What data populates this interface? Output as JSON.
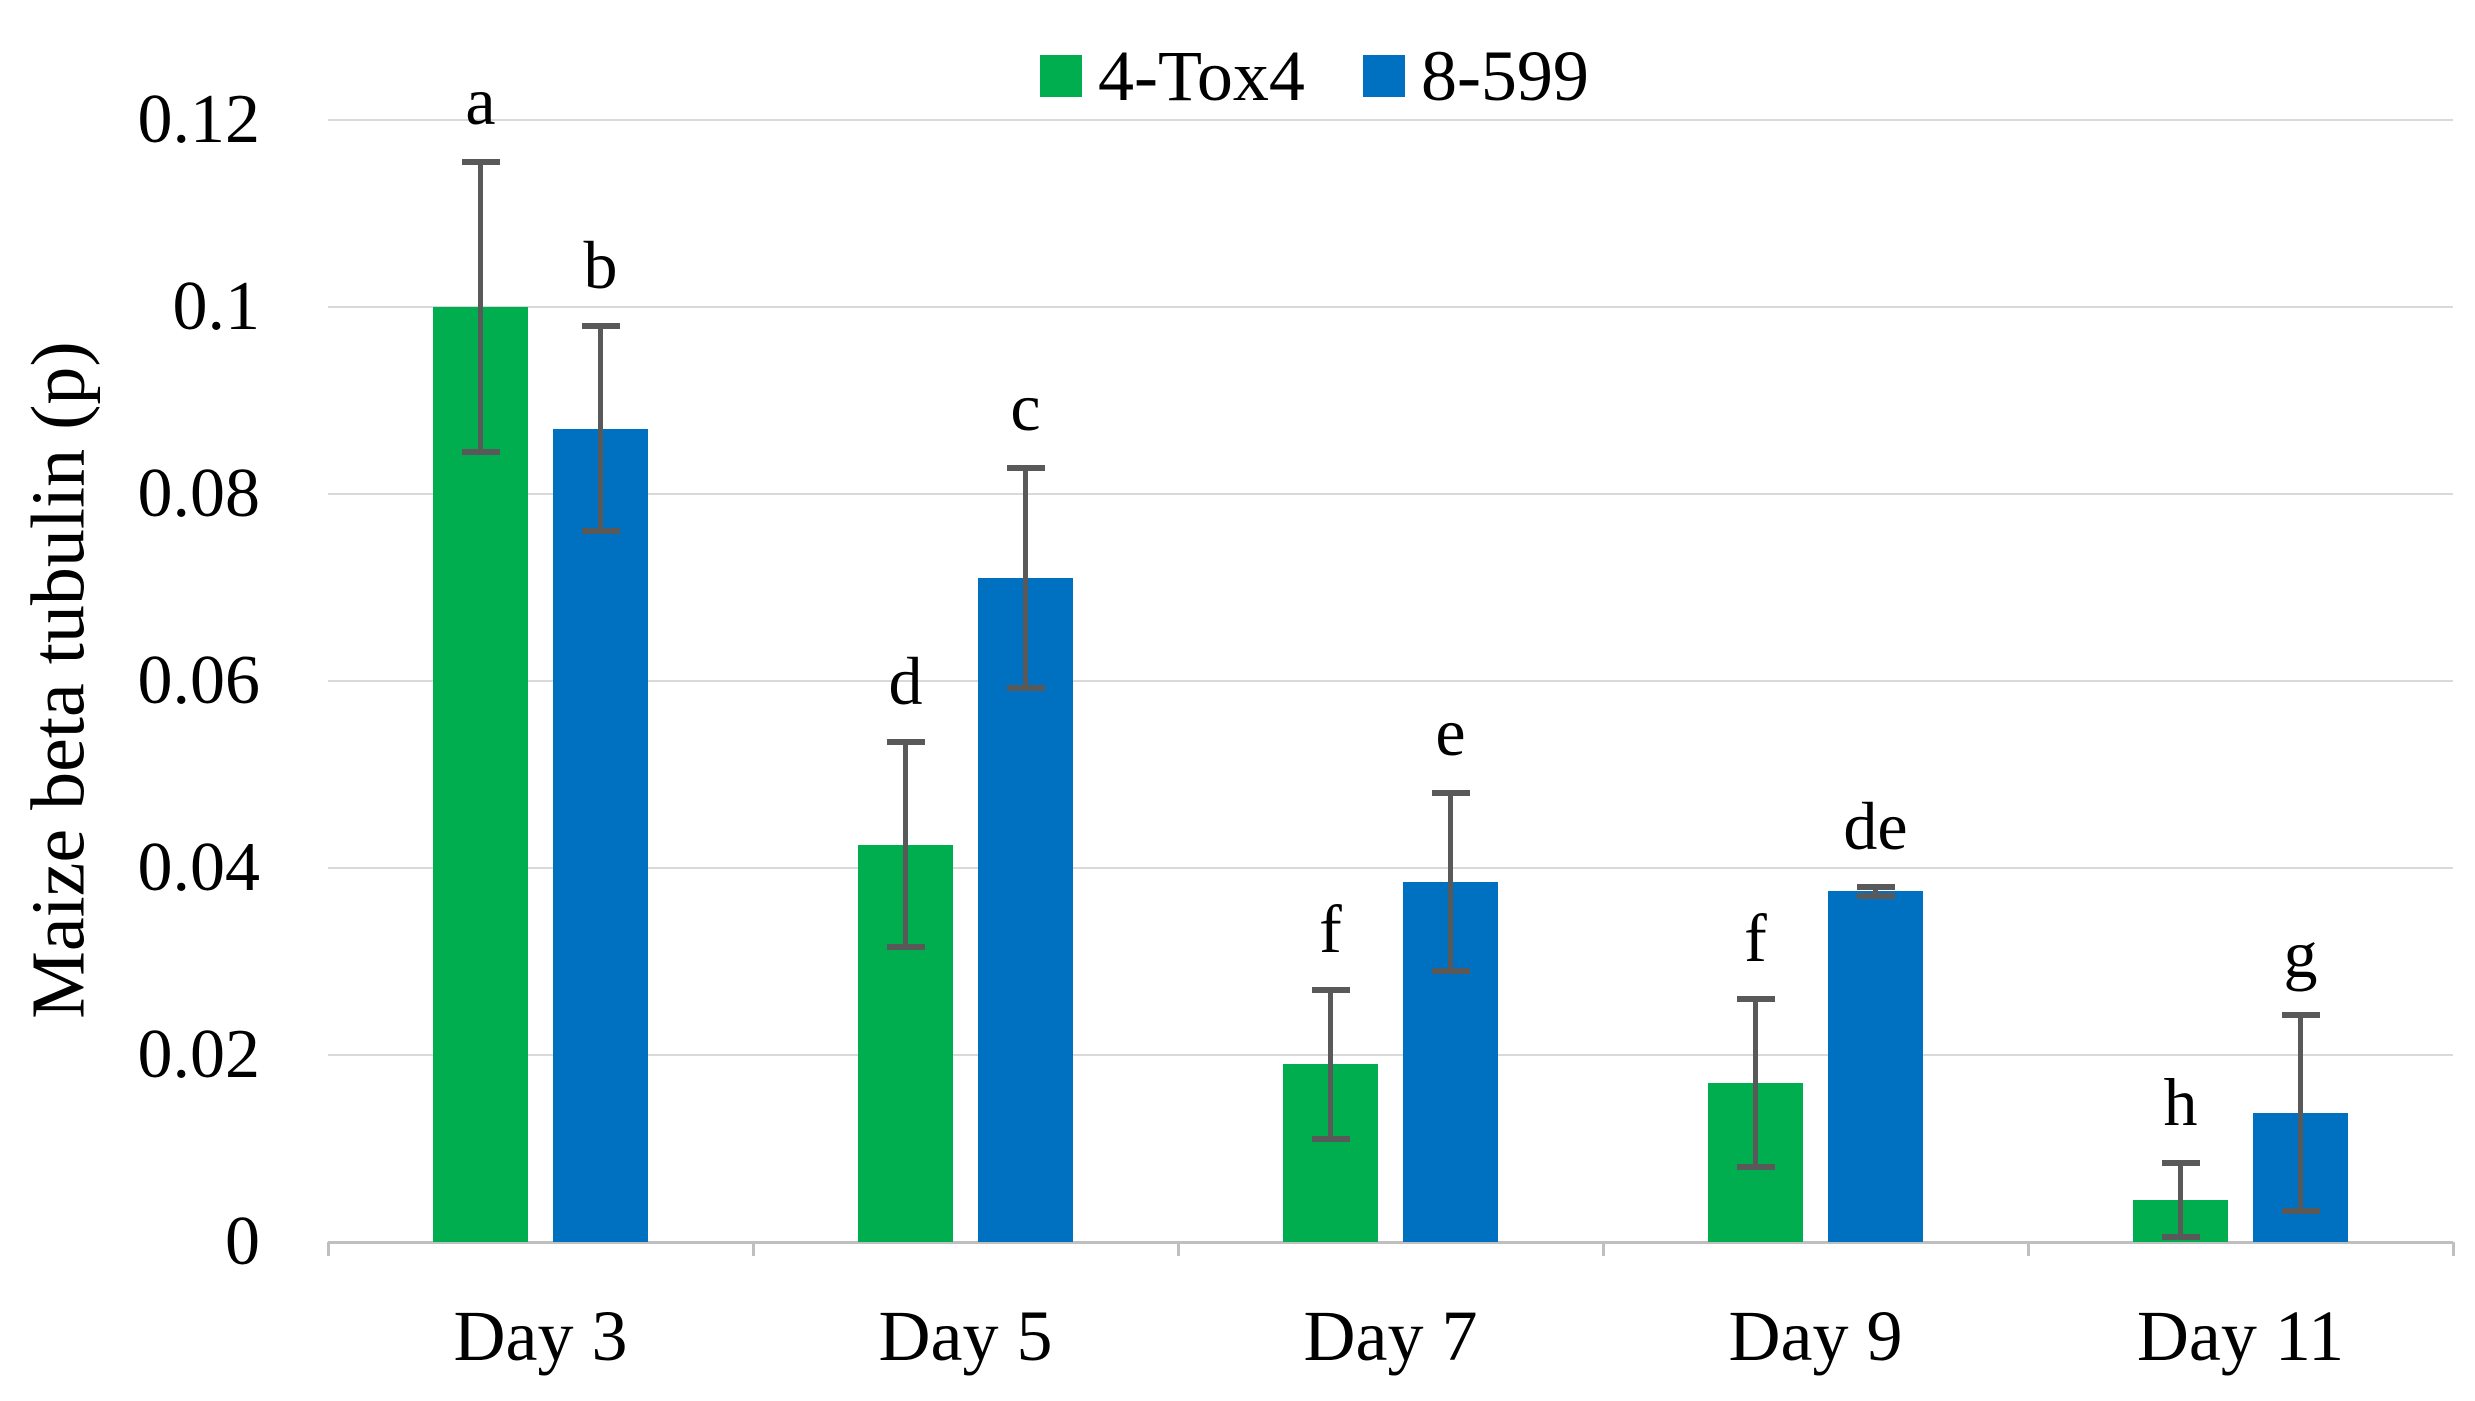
{
  "figure": {
    "background_color": "#ffffff",
    "gridline_color": "#d9d9d9",
    "axis_line_color": "#bfbfbf",
    "error_bar_color": "#595959",
    "text_color": "#000000"
  },
  "chart_data": {
    "type": "bar",
    "title": "",
    "xlabel": "",
    "ylabel": "Maize beta tubulin (p)",
    "categories": [
      "Day 3",
      "Day 5",
      "Day 7",
      "Day 9",
      "Day 11"
    ],
    "y_ticks": [
      {
        "value": 0,
        "label": "0"
      },
      {
        "value": 0.02,
        "label": "0.02"
      },
      {
        "value": 0.04,
        "label": "0.04"
      },
      {
        "value": 0.06,
        "label": "0.06"
      },
      {
        "value": 0.08,
        "label": "0.08"
      },
      {
        "value": 0.1,
        "label": "0.1"
      },
      {
        "value": 0.12,
        "label": "0.12"
      }
    ],
    "ylim": [
      0,
      0.12
    ],
    "grid": true,
    "legend_position": "top-center",
    "error_bars": true,
    "series": [
      {
        "name": "4-Tox4",
        "color": "#00ae50",
        "values": [
          0.1,
          0.0425,
          0.019,
          0.017,
          0.0045
        ],
        "errors": [
          0.0155,
          0.011,
          0.008,
          0.009,
          0.004
        ],
        "letters": [
          "a",
          "d",
          "f",
          "f",
          "h"
        ]
      },
      {
        "name": "8-599",
        "color": "#0070c0",
        "values": [
          0.087,
          0.071,
          0.0385,
          0.0375,
          0.0138
        ],
        "errors": [
          0.011,
          0.0118,
          0.0095,
          0.0005,
          0.0105
        ],
        "letters": [
          "b",
          "c",
          "e",
          "de",
          "g"
        ]
      }
    ]
  }
}
